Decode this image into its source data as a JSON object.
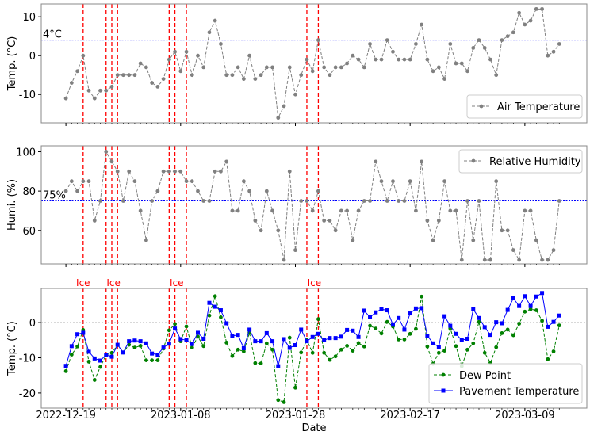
{
  "chart_data": [
    {
      "type": "line",
      "ylabel": "Temp. (°C)",
      "ylim": [
        -17.3,
        13.3
      ],
      "yticks": [
        10,
        0,
        -10
      ],
      "threshold": {
        "value": 4,
        "label": "4°C",
        "color": "#0000ff"
      },
      "legend": "bottom-right",
      "series": [
        {
          "name": "Air Temperature",
          "color": "#808080",
          "values": [
            -11,
            -7,
            -4,
            0,
            -9,
            -11,
            -9,
            -9,
            -8,
            -5,
            -5,
            -5,
            -5,
            -2,
            -3,
            -7,
            -8,
            -6,
            -1,
            1,
            -4,
            1,
            -5,
            0,
            -3,
            6,
            9,
            3,
            -5,
            -5,
            -3,
            -6,
            0,
            -6,
            -5,
            -3,
            -3,
            -16,
            -13,
            -3,
            -10,
            -5,
            -1,
            -4,
            4,
            -3,
            -5,
            -3,
            -3,
            -2,
            0,
            -1,
            -3,
            3,
            -1,
            -1,
            4,
            1,
            -1,
            -1,
            -1,
            3,
            8,
            -1,
            -4,
            -3,
            -6,
            3,
            -2,
            -2,
            -4,
            2,
            4,
            2,
            -1,
            -5,
            4,
            5,
            6,
            11,
            8,
            9,
            12,
            12,
            0,
            1,
            3
          ]
        }
      ]
    },
    {
      "type": "line",
      "ylabel": "Humi. (%)",
      "ylim": [
        43,
        103
      ],
      "yticks": [
        100,
        80,
        60
      ],
      "threshold": {
        "value": 75,
        "label": "75%",
        "color": "#0000ff"
      },
      "legend": "top-right",
      "series": [
        {
          "name": "Relative Humidity",
          "color": "#808080",
          "values": [
            80,
            85,
            80,
            85,
            85,
            65,
            75,
            100,
            95,
            90,
            75,
            90,
            85,
            70,
            55,
            75,
            80,
            90,
            90,
            90,
            90,
            85,
            85,
            80,
            75,
            75,
            90,
            90,
            95,
            70,
            70,
            85,
            80,
            65,
            60,
            80,
            70,
            60,
            45,
            90,
            50,
            75,
            75,
            70,
            80,
            65,
            65,
            60,
            70,
            70,
            55,
            70,
            75,
            75,
            95,
            85,
            75,
            85,
            75,
            75,
            85,
            70,
            95,
            65,
            55,
            65,
            85,
            70,
            70,
            45,
            75,
            55,
            75,
            45,
            45,
            85,
            60,
            60,
            50,
            45,
            70,
            70,
            55,
            45,
            45,
            50,
            75
          ]
        }
      ]
    },
    {
      "type": "line",
      "ylabel": "Temp. (°C)",
      "xlabel": "Date",
      "ylim": [
        -24.3,
        9.7
      ],
      "yticks": [
        0,
        -10,
        -20
      ],
      "zero_line": 0,
      "legend": "bottom-right",
      "x_start": "2022-12-19",
      "xtick_labels": [
        "2022-12-19",
        "2023-01-08",
        "2023-01-28",
        "2023-02-17",
        "2023-03-09"
      ],
      "xtick_days": [
        0,
        20,
        40,
        60,
        80
      ],
      "xlim_days": [
        -4.3,
        90.8
      ],
      "ice_event_days": [
        3,
        7,
        8,
        9,
        18,
        19,
        21,
        42,
        44
      ],
      "ice_label": "Ice",
      "ice_label_days": [
        3,
        8.3,
        19.3,
        43.3
      ],
      "series": [
        {
          "name": "Dew Point",
          "color": "#008000",
          "marker": "circle",
          "style": "dashed",
          "values": [
            -13.8,
            -9.1,
            -6.8,
            -2.1,
            -11.1,
            -16.3,
            -12.6,
            -9.2,
            -8.6,
            -6.4,
            -8.5,
            -6.3,
            -7.1,
            -6.6,
            -10.7,
            -10.7,
            -10.7,
            -7.4,
            -2.2,
            -0.4,
            -5.3,
            -1.1,
            -7.1,
            -4,
            -6.7,
            2,
            7.5,
            1.5,
            -5.7,
            -9.5,
            -7.7,
            -8.2,
            -2.9,
            -11.5,
            -11.6,
            -5.9,
            -7.7,
            -22,
            -22.6,
            -4.3,
            -18.5,
            -8.5,
            -5,
            -8.6,
            1,
            -8.6,
            -10.6,
            -9.6,
            -7.7,
            -6.6,
            -8,
            -5.8,
            -6.8,
            -0.9,
            -1.7,
            -3.1,
            0.2,
            -1.1,
            -4.8,
            -4.8,
            -3.2,
            -1.8,
            7.4,
            -6.8,
            -11.7,
            -8.6,
            -8,
            -1.7,
            -6.7,
            -12.4,
            -7.7,
            -5.9,
            0.2,
            -8.6,
            -11.4,
            -7,
            -3,
            -2,
            -3.6,
            -0.3,
            3.1,
            3.8,
            3.5,
            0.5,
            -10.4,
            -8.2,
            -0.8
          ]
        },
        {
          "name": "Pavement Temperature",
          "color": "#0000ff",
          "marker": "square",
          "style": "solid",
          "values": [
            -12.3,
            -6.7,
            -3.3,
            -2.9,
            -8.3,
            -10.2,
            -10.8,
            -9.2,
            -9.7,
            -6.3,
            -8.5,
            -5.3,
            -5.1,
            -5.3,
            -5.9,
            -8.8,
            -9.1,
            -7.1,
            -6,
            -1.7,
            -4.7,
            -5,
            -6.1,
            -2.9,
            -4.6,
            5.6,
            4.5,
            3.5,
            -0.2,
            -3.8,
            -3.5,
            -7.3,
            -2,
            -5.3,
            -5.3,
            -3,
            -5.3,
            -12.4,
            -4.7,
            -7.2,
            -6.4,
            -2,
            -5.3,
            -4.1,
            -3.2,
            -5,
            -4.4,
            -4.4,
            -4,
            -2.1,
            -2.3,
            -4.1,
            3.4,
            1.5,
            2.9,
            3.8,
            3.5,
            -0.6,
            1.3,
            -2,
            2.6,
            4,
            4.1,
            -3.7,
            -5.9,
            -6.9,
            1.8,
            -0.9,
            -3.2,
            -5,
            -4.6,
            3.8,
            1.3,
            -1.3,
            -3.5,
            0.1,
            -0.2,
            3.6,
            6.9,
            4.7,
            7.5,
            4.7,
            7.4,
            8.4,
            -1.2,
            0.2,
            2
          ]
        }
      ]
    }
  ]
}
